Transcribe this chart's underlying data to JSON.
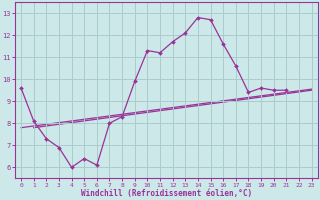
{
  "bg_color": "#cce8e8",
  "grid_color": "#aacccc",
  "line_color": "#993399",
  "xlabel": "Windchill (Refroidissement éolien,°C)",
  "xlim": [
    -0.5,
    23.5
  ],
  "ylim": [
    5.5,
    13.5
  ],
  "yticks": [
    6,
    7,
    8,
    9,
    10,
    11,
    12,
    13
  ],
  "xticks": [
    0,
    1,
    2,
    3,
    4,
    5,
    6,
    7,
    8,
    9,
    10,
    11,
    12,
    13,
    14,
    15,
    16,
    17,
    18,
    19,
    20,
    21,
    22,
    23
  ],
  "line1_x": [
    0,
    1,
    2,
    3,
    4,
    5,
    6,
    7,
    8,
    9,
    10,
    11,
    12,
    13,
    14,
    15,
    16,
    17,
    18,
    19,
    20,
    21
  ],
  "line1_y": [
    9.6,
    8.1,
    7.3,
    6.9,
    6.0,
    6.4,
    6.1,
    8.0,
    8.3,
    9.9,
    11.3,
    11.2,
    11.7,
    12.1,
    12.8,
    12.7,
    11.6,
    10.6,
    9.4,
    9.6,
    9.5,
    9.5
  ],
  "line2_x": [
    0,
    23
  ],
  "line2_y": [
    7.8,
    9.55
  ],
  "line3_x": [
    1,
    23
  ],
  "line3_y": [
    7.8,
    9.5
  ]
}
